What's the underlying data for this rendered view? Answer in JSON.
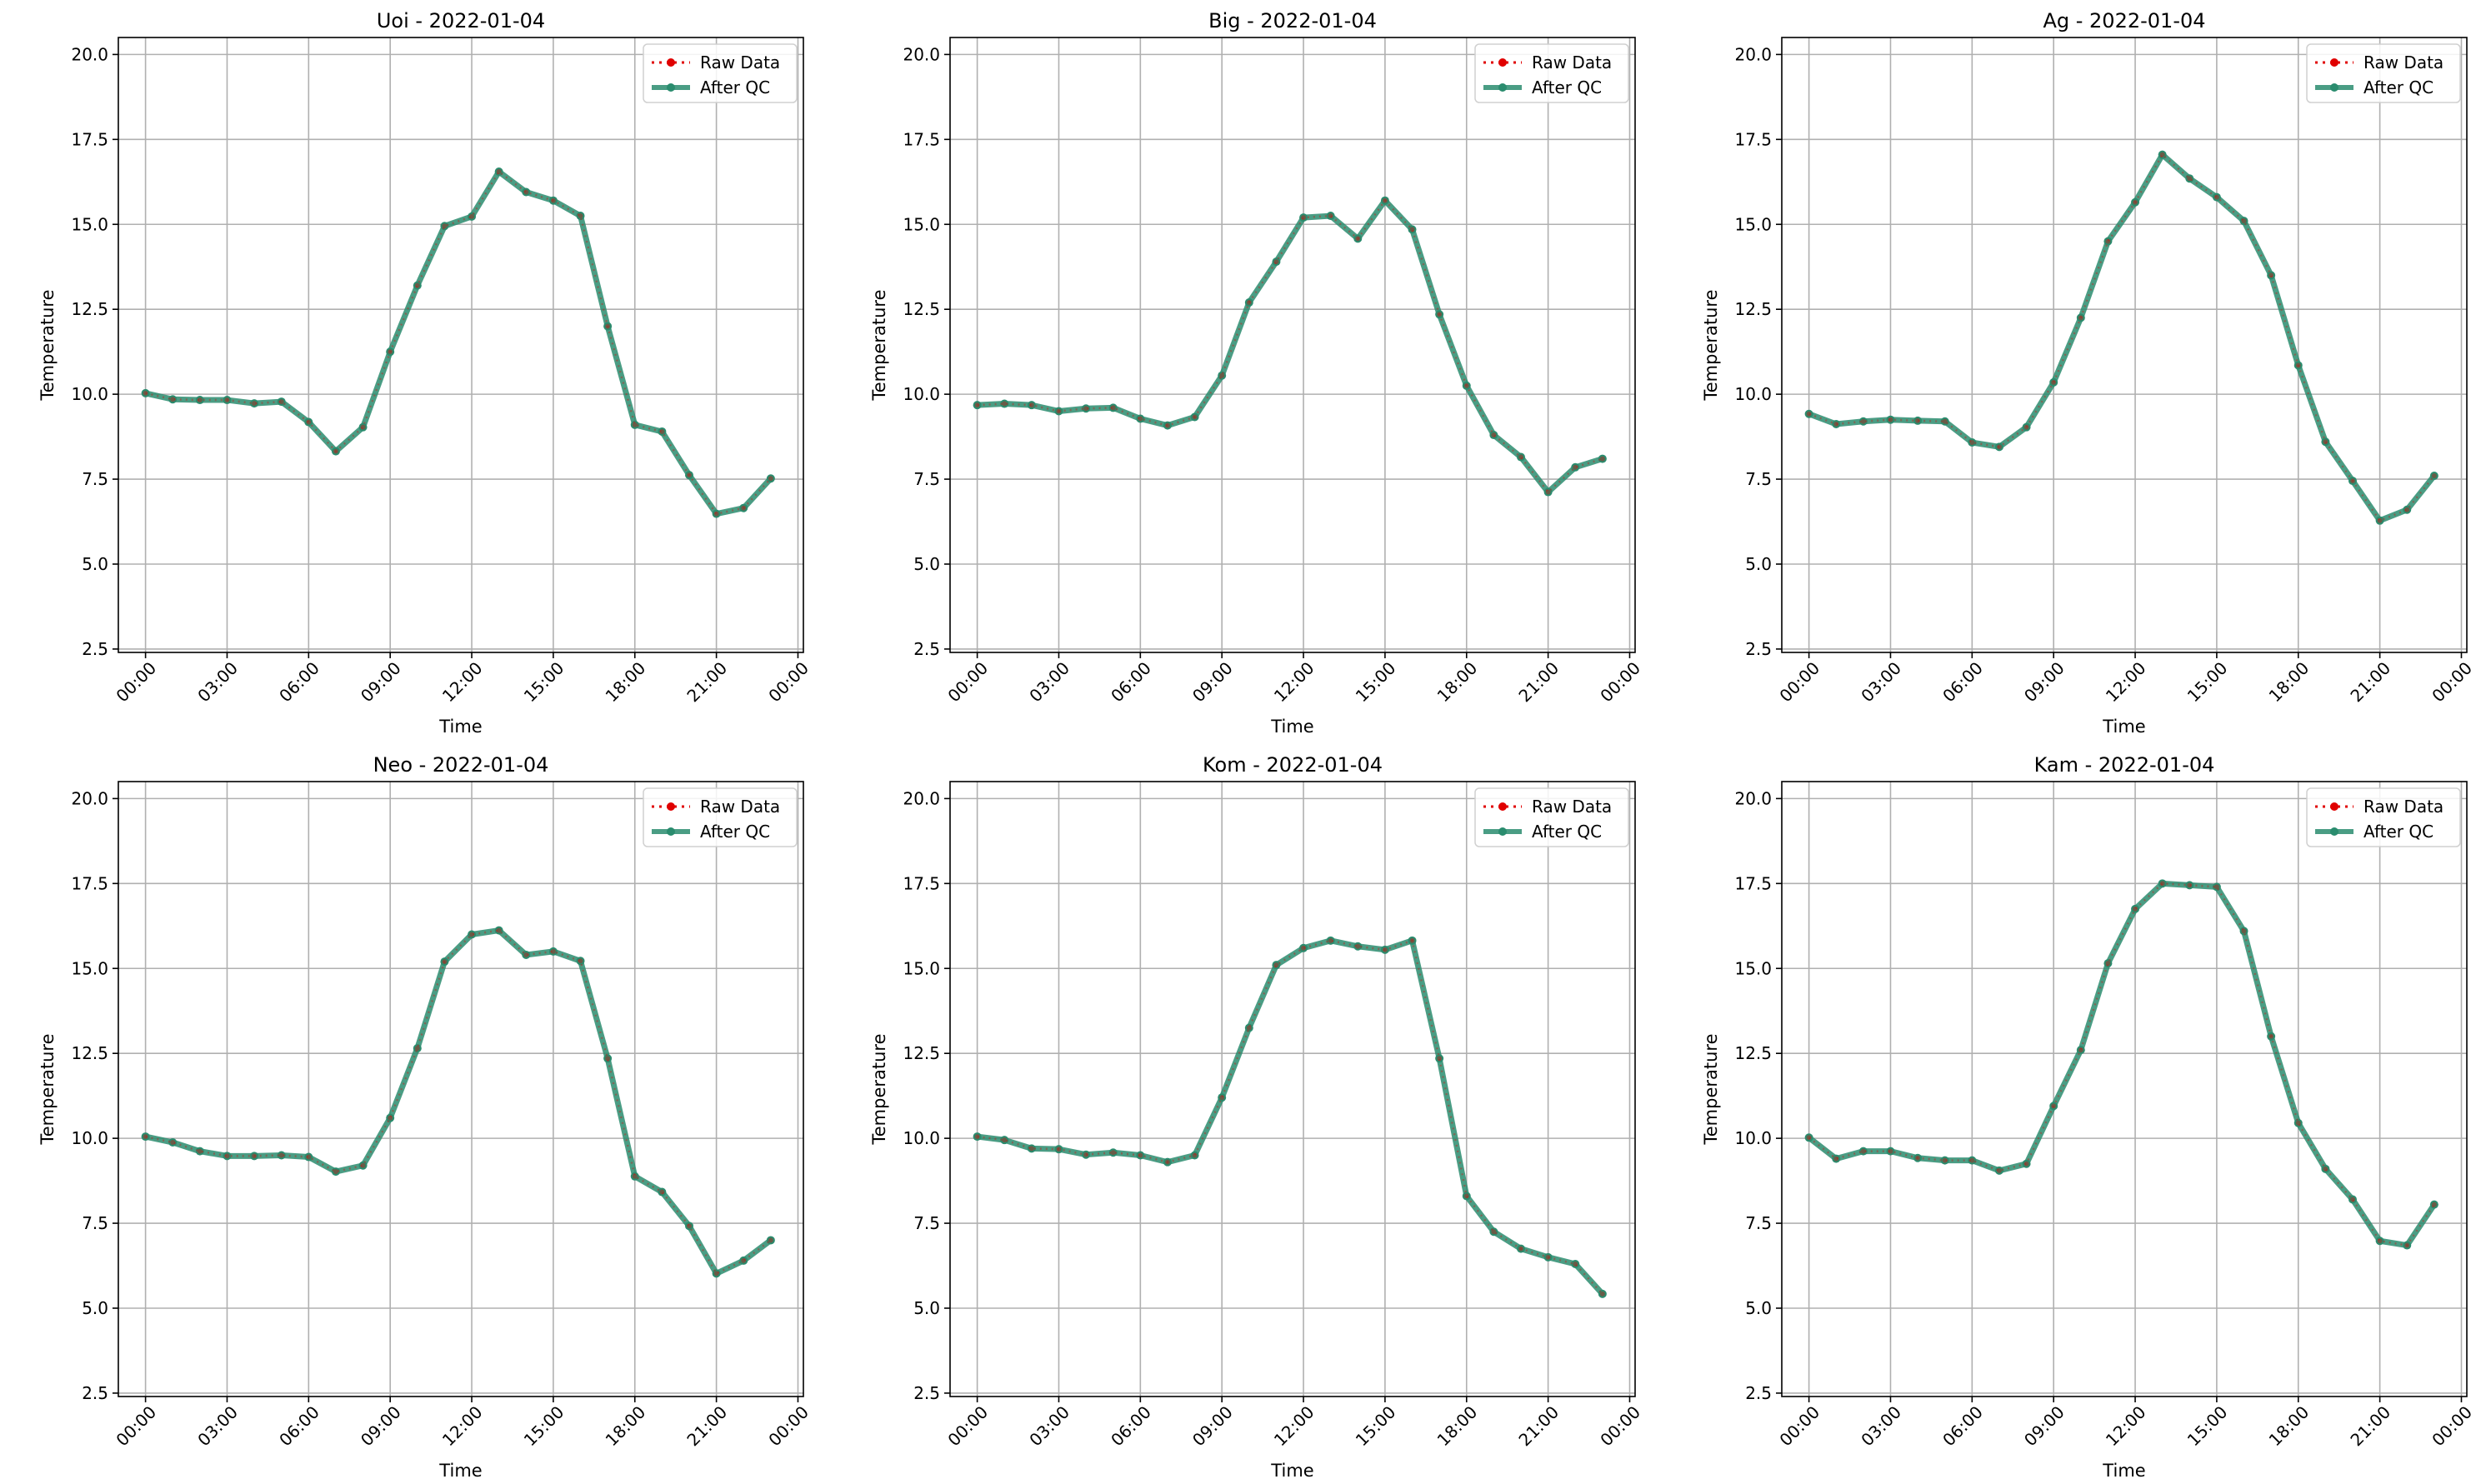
{
  "figure": {
    "colors": {
      "raw": "#e00000",
      "qc": "#2a8c6e",
      "grid": "#b0b0b0",
      "axis": "#000000"
    }
  },
  "chart_data": [
    {
      "type": "line",
      "title": "Uoi - 2022-01-04",
      "xlabel": "Time",
      "ylabel": "Temperature",
      "x_ticks": [
        "00:00",
        "03:00",
        "06:00",
        "09:00",
        "12:00",
        "15:00",
        "18:00",
        "21:00",
        "00:00"
      ],
      "y_ticks": [
        "2.5",
        "5.0",
        "7.5",
        "10.0",
        "12.5",
        "15.0",
        "17.5",
        "20.0"
      ],
      "xlim": [
        -1.0,
        24.2
      ],
      "ylim": [
        2.4,
        20.5
      ],
      "grid": true,
      "legend_position": "top-right",
      "x": [
        "00:00",
        "01:00",
        "02:00",
        "03:00",
        "04:00",
        "05:00",
        "06:00",
        "07:00",
        "08:00",
        "09:00",
        "10:00",
        "11:00",
        "12:00",
        "13:00",
        "14:00",
        "15:00",
        "16:00",
        "17:00",
        "18:00",
        "19:00",
        "20:00",
        "21:00",
        "22:00",
        "23:00"
      ],
      "series": [
        {
          "name": "Raw Data",
          "values": [
            10.03,
            9.85,
            9.83,
            9.83,
            9.73,
            9.78,
            9.18,
            8.32,
            9.03,
            11.25,
            13.2,
            14.95,
            15.23,
            16.55,
            15.95,
            15.7,
            15.25,
            12.0,
            9.1,
            8.9,
            7.62,
            6.48,
            6.65,
            7.52
          ]
        },
        {
          "name": "After QC",
          "values": [
            10.03,
            9.85,
            9.83,
            9.83,
            9.73,
            9.78,
            9.18,
            8.32,
            9.03,
            11.25,
            13.2,
            14.95,
            15.23,
            16.55,
            15.95,
            15.7,
            15.25,
            12.0,
            9.1,
            8.9,
            7.62,
            6.48,
            6.65,
            7.52
          ]
        }
      ]
    },
    {
      "type": "line",
      "title": "Big - 2022-01-04",
      "xlabel": "Time",
      "ylabel": "Temperature",
      "x_ticks": [
        "00:00",
        "03:00",
        "06:00",
        "09:00",
        "12:00",
        "15:00",
        "18:00",
        "21:00",
        "00:00"
      ],
      "y_ticks": [
        "2.5",
        "5.0",
        "7.5",
        "10.0",
        "12.5",
        "15.0",
        "17.5",
        "20.0"
      ],
      "xlim": [
        -1.0,
        24.2
      ],
      "ylim": [
        2.4,
        20.5
      ],
      "grid": true,
      "legend_position": "top-right",
      "x": [
        "00:00",
        "01:00",
        "02:00",
        "03:00",
        "04:00",
        "05:00",
        "06:00",
        "07:00",
        "08:00",
        "09:00",
        "10:00",
        "11:00",
        "12:00",
        "13:00",
        "14:00",
        "15:00",
        "16:00",
        "17:00",
        "18:00",
        "19:00",
        "20:00",
        "21:00",
        "22:00",
        "23:00"
      ],
      "series": [
        {
          "name": "Raw Data",
          "values": [
            9.68,
            9.72,
            9.68,
            9.5,
            9.58,
            9.6,
            9.28,
            9.08,
            9.33,
            10.55,
            12.7,
            13.9,
            15.2,
            15.25,
            14.58,
            15.7,
            14.85,
            12.35,
            10.25,
            8.8,
            8.15,
            7.12,
            7.85,
            8.1
          ]
        },
        {
          "name": "After QC",
          "values": [
            9.68,
            9.72,
            9.68,
            9.5,
            9.58,
            9.6,
            9.28,
            9.08,
            9.33,
            10.55,
            12.7,
            13.9,
            15.2,
            15.25,
            14.58,
            15.7,
            14.85,
            12.35,
            10.25,
            8.8,
            8.15,
            7.12,
            7.85,
            8.1
          ]
        }
      ]
    },
    {
      "type": "line",
      "title": "Ag - 2022-01-04",
      "xlabel": "Time",
      "ylabel": "Temperature",
      "x_ticks": [
        "00:00",
        "03:00",
        "06:00",
        "09:00",
        "12:00",
        "15:00",
        "18:00",
        "21:00",
        "00:00"
      ],
      "y_ticks": [
        "2.5",
        "5.0",
        "7.5",
        "10.0",
        "12.5",
        "15.0",
        "17.5",
        "20.0"
      ],
      "xlim": [
        -1.0,
        24.2
      ],
      "ylim": [
        2.4,
        20.5
      ],
      "grid": true,
      "legend_position": "top-right",
      "x": [
        "00:00",
        "01:00",
        "02:00",
        "03:00",
        "04:00",
        "05:00",
        "06:00",
        "07:00",
        "08:00",
        "09:00",
        "10:00",
        "11:00",
        "12:00",
        "13:00",
        "14:00",
        "15:00",
        "16:00",
        "17:00",
        "18:00",
        "19:00",
        "20:00",
        "21:00",
        "22:00",
        "23:00"
      ],
      "series": [
        {
          "name": "Raw Data",
          "values": [
            9.42,
            9.12,
            9.2,
            9.25,
            9.22,
            9.2,
            8.58,
            8.45,
            9.03,
            10.35,
            12.25,
            14.5,
            15.65,
            17.05,
            16.35,
            15.8,
            15.1,
            13.5,
            10.85,
            8.6,
            7.45,
            6.28,
            6.6,
            7.6
          ]
        },
        {
          "name": "After QC",
          "values": [
            9.42,
            9.12,
            9.2,
            9.25,
            9.22,
            9.2,
            8.58,
            8.45,
            9.03,
            10.35,
            12.25,
            14.5,
            15.65,
            17.05,
            16.35,
            15.8,
            15.1,
            13.5,
            10.85,
            8.6,
            7.45,
            6.28,
            6.6,
            7.6
          ]
        }
      ]
    },
    {
      "type": "line",
      "title": "Neo - 2022-01-04",
      "xlabel": "Time",
      "ylabel": "Temperature",
      "x_ticks": [
        "00:00",
        "03:00",
        "06:00",
        "09:00",
        "12:00",
        "15:00",
        "18:00",
        "21:00",
        "00:00"
      ],
      "y_ticks": [
        "2.5",
        "5.0",
        "7.5",
        "10.0",
        "12.5",
        "15.0",
        "17.5",
        "20.0"
      ],
      "xlim": [
        -1.0,
        24.2
      ],
      "ylim": [
        2.4,
        20.5
      ],
      "grid": true,
      "legend_position": "top-right",
      "x": [
        "00:00",
        "01:00",
        "02:00",
        "03:00",
        "04:00",
        "05:00",
        "06:00",
        "07:00",
        "08:00",
        "09:00",
        "10:00",
        "11:00",
        "12:00",
        "13:00",
        "14:00",
        "15:00",
        "16:00",
        "17:00",
        "18:00",
        "19:00",
        "20:00",
        "21:00",
        "22:00",
        "23:00"
      ],
      "series": [
        {
          "name": "Raw Data",
          "values": [
            10.05,
            9.88,
            9.62,
            9.48,
            9.48,
            9.5,
            9.45,
            9.02,
            9.2,
            10.6,
            12.65,
            15.2,
            16.0,
            16.12,
            15.4,
            15.5,
            15.22,
            12.35,
            8.88,
            8.42,
            7.42,
            6.02,
            6.4,
            7.0
          ]
        },
        {
          "name": "After QC",
          "values": [
            10.05,
            9.88,
            9.62,
            9.48,
            9.48,
            9.5,
            9.45,
            9.02,
            9.2,
            10.6,
            12.65,
            15.2,
            16.0,
            16.12,
            15.4,
            15.5,
            15.22,
            12.35,
            8.88,
            8.42,
            7.42,
            6.02,
            6.4,
            7.0
          ]
        }
      ]
    },
    {
      "type": "line",
      "title": "Kom - 2022-01-04",
      "xlabel": "Time",
      "ylabel": "Temperature",
      "x_ticks": [
        "00:00",
        "03:00",
        "06:00",
        "09:00",
        "12:00",
        "15:00",
        "18:00",
        "21:00",
        "00:00"
      ],
      "y_ticks": [
        "2.5",
        "5.0",
        "7.5",
        "10.0",
        "12.5",
        "15.0",
        "17.5",
        "20.0"
      ],
      "xlim": [
        -1.0,
        24.2
      ],
      "ylim": [
        2.4,
        20.5
      ],
      "grid": true,
      "legend_position": "top-right",
      "x": [
        "00:00",
        "01:00",
        "02:00",
        "03:00",
        "04:00",
        "05:00",
        "06:00",
        "07:00",
        "08:00",
        "09:00",
        "10:00",
        "11:00",
        "12:00",
        "13:00",
        "14:00",
        "15:00",
        "16:00",
        "17:00",
        "18:00",
        "19:00",
        "20:00",
        "21:00",
        "22:00",
        "23:00"
      ],
      "series": [
        {
          "name": "Raw Data",
          "values": [
            10.05,
            9.95,
            9.7,
            9.68,
            9.52,
            9.58,
            9.5,
            9.3,
            9.5,
            11.2,
            13.25,
            15.1,
            15.6,
            15.82,
            15.65,
            15.55,
            15.82,
            12.35,
            8.3,
            7.25,
            6.75,
            6.5,
            6.3,
            5.42
          ]
        },
        {
          "name": "After QC",
          "values": [
            10.05,
            9.95,
            9.7,
            9.68,
            9.52,
            9.58,
            9.5,
            9.3,
            9.5,
            11.2,
            13.25,
            15.1,
            15.6,
            15.82,
            15.65,
            15.55,
            15.82,
            12.35,
            8.3,
            7.25,
            6.75,
            6.5,
            6.3,
            5.42
          ]
        }
      ]
    },
    {
      "type": "line",
      "title": "Kam - 2022-01-04",
      "xlabel": "Time",
      "ylabel": "Temperature",
      "x_ticks": [
        "00:00",
        "03:00",
        "06:00",
        "09:00",
        "12:00",
        "15:00",
        "18:00",
        "21:00",
        "00:00"
      ],
      "y_ticks": [
        "2.5",
        "5.0",
        "7.5",
        "10.0",
        "12.5",
        "15.0",
        "17.5",
        "20.0"
      ],
      "xlim": [
        -1.0,
        24.2
      ],
      "ylim": [
        2.4,
        20.5
      ],
      "grid": true,
      "legend_position": "top-right",
      "x": [
        "00:00",
        "01:00",
        "02:00",
        "03:00",
        "04:00",
        "05:00",
        "06:00",
        "07:00",
        "08:00",
        "09:00",
        "10:00",
        "11:00",
        "12:00",
        "13:00",
        "14:00",
        "15:00",
        "16:00",
        "17:00",
        "18:00",
        "19:00",
        "20:00",
        "21:00",
        "22:00",
        "23:00"
      ],
      "series": [
        {
          "name": "Raw Data",
          "values": [
            10.02,
            9.4,
            9.62,
            9.62,
            9.42,
            9.35,
            9.35,
            9.05,
            9.25,
            10.95,
            12.6,
            15.15,
            16.75,
            17.5,
            17.45,
            17.4,
            16.1,
            13.0,
            10.45,
            9.1,
            8.2,
            6.98,
            6.85,
            8.05
          ]
        },
        {
          "name": "After QC",
          "values": [
            10.02,
            9.4,
            9.62,
            9.62,
            9.42,
            9.35,
            9.35,
            9.05,
            9.25,
            10.95,
            12.6,
            15.15,
            16.75,
            17.5,
            17.45,
            17.4,
            16.1,
            13.0,
            10.45,
            9.1,
            8.2,
            6.98,
            6.85,
            8.05
          ]
        }
      ]
    }
  ]
}
